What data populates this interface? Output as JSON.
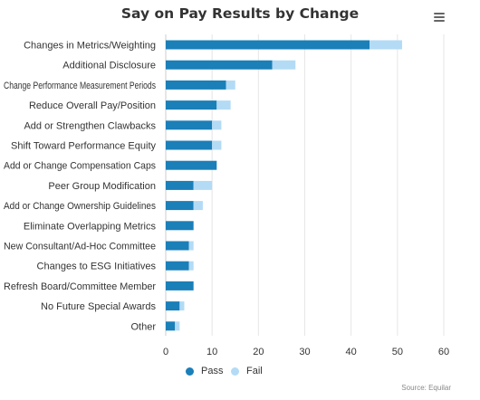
{
  "header": {
    "title": "Say on Pay Results by Change",
    "menu_icon": "hamburger-menu-icon"
  },
  "colors": {
    "pass": "#1b7fb8",
    "fail": "#b3dbf5",
    "grid": "#e6e6e6",
    "axis": "#cccccc"
  },
  "source": "Source: Equilar",
  "chart_data": {
    "type": "bar",
    "orientation": "horizontal",
    "stacked": true,
    "title": "Say on Pay Results by Change",
    "categories": [
      "Changes in Metrics/Weighting",
      "Additional Disclosure",
      "Change Performance Measurement Periods",
      "Reduce Overall Pay/Position",
      "Add or Strengthen Clawbacks",
      "Shift Toward Performance Equity",
      "Add or Change Compensation Caps",
      "Peer Group Modification",
      "Add or Change Ownership Guidelines",
      "Eliminate Overlapping Metrics",
      "New Consultant/Ad-Hoc Committee",
      "Changes to ESG Initiatives",
      "Refresh Board/Committee Member",
      "No Future Special Awards",
      "Other"
    ],
    "series": [
      {
        "name": "Pass",
        "values": [
          44,
          23,
          13,
          11,
          10,
          10,
          11,
          6,
          6,
          6,
          5,
          5,
          6,
          3,
          2
        ]
      },
      {
        "name": "Fail",
        "values": [
          7,
          5,
          2,
          3,
          2,
          2,
          0,
          4,
          2,
          0,
          1,
          1,
          0,
          1,
          1
        ]
      }
    ],
    "xlim": [
      0,
      60
    ],
    "xticks": [
      0,
      10,
      20,
      30,
      40,
      50,
      60
    ],
    "grid": true,
    "legend": "bottom-center"
  }
}
